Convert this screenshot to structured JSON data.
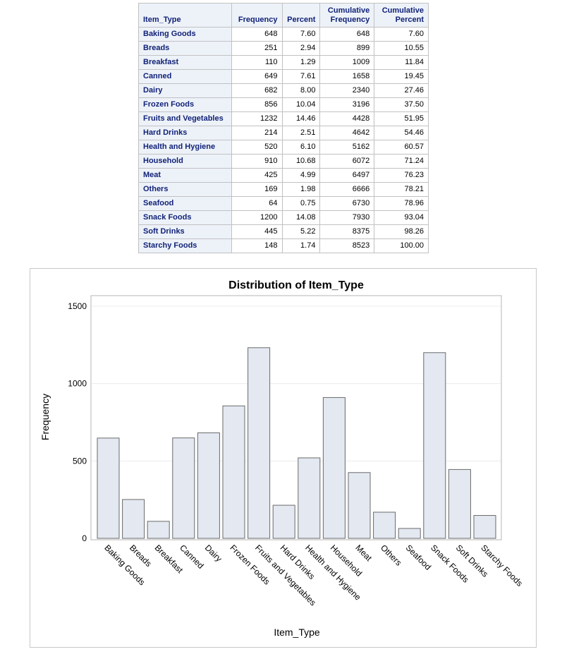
{
  "table": {
    "headers": [
      "Item_Type",
      "Frequency",
      "Percent",
      "Cumulative\nFrequency",
      "Cumulative\nPercent"
    ],
    "rows": [
      [
        "Baking Goods",
        "648",
        "7.60",
        "648",
        "7.60"
      ],
      [
        "Breads",
        "251",
        "2.94",
        "899",
        "10.55"
      ],
      [
        "Breakfast",
        "110",
        "1.29",
        "1009",
        "11.84"
      ],
      [
        "Canned",
        "649",
        "7.61",
        "1658",
        "19.45"
      ],
      [
        "Dairy",
        "682",
        "8.00",
        "2340",
        "27.46"
      ],
      [
        "Frozen Foods",
        "856",
        "10.04",
        "3196",
        "37.50"
      ],
      [
        "Fruits and Vegetables",
        "1232",
        "14.46",
        "4428",
        "51.95"
      ],
      [
        "Hard Drinks",
        "214",
        "2.51",
        "4642",
        "54.46"
      ],
      [
        "Health and Hygiene",
        "520",
        "6.10",
        "5162",
        "60.57"
      ],
      [
        "Household",
        "910",
        "10.68",
        "6072",
        "71.24"
      ],
      [
        "Meat",
        "425",
        "4.99",
        "6497",
        "76.23"
      ],
      [
        "Others",
        "169",
        "1.98",
        "6666",
        "78.21"
      ],
      [
        "Seafood",
        "64",
        "0.75",
        "6730",
        "78.96"
      ],
      [
        "Snack Foods",
        "1200",
        "14.08",
        "7930",
        "93.04"
      ],
      [
        "Soft Drinks",
        "445",
        "5.22",
        "8375",
        "98.26"
      ],
      [
        "Starchy Foods",
        "148",
        "1.74",
        "8523",
        "100.00"
      ]
    ]
  },
  "chart_data": {
    "type": "bar",
    "title": "Distribution of Item_Type",
    "xlabel": "Item_Type",
    "ylabel": "Frequency",
    "categories": [
      "Baking Goods",
      "Breads",
      "Breakfast",
      "Canned",
      "Dairy",
      "Frozen Foods",
      "Fruits and Vegetables",
      "Hard Drinks",
      "Health and Hygiene",
      "Household",
      "Meat",
      "Others",
      "Seafood",
      "Snack Foods",
      "Soft Drinks",
      "Starchy Foods"
    ],
    "values": [
      648,
      251,
      110,
      649,
      682,
      856,
      1232,
      214,
      520,
      910,
      425,
      169,
      64,
      1200,
      445,
      148
    ],
    "yticks": [
      0,
      500,
      1000,
      1500
    ],
    "ylim": [
      0,
      1500
    ],
    "grid": true,
    "colors": {
      "bar_fill": "#e3e8f1",
      "bar_stroke": "#6a6a6a"
    }
  }
}
